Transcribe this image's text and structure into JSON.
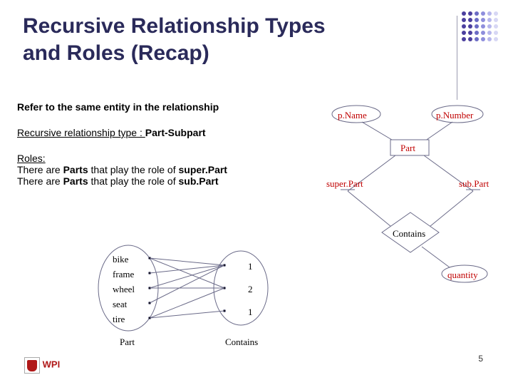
{
  "title_line1": "Recursive Relationship Types",
  "title_line2": "and Roles (Recap)",
  "text1": "Refer to the same entity in the relationship",
  "text2_a": "Recursive relationship type : ",
  "text2_b": "Part-Subpart",
  "roles_head": "Roles:",
  "roles_l1a": "There are ",
  "roles_l1b": "Parts",
  "roles_l1c": " that play the role of ",
  "roles_l1d": "super.Part",
  "roles_l2a": "There are ",
  "roles_l2b": "Parts",
  "roles_l2c": " that play the role of ",
  "roles_l2d": "sub.Part",
  "logo_text": "WPI",
  "page_number": "5",
  "dots": {
    "rows": 5,
    "cols": 6,
    "colors": [
      "#4b3f9e",
      "#4b3f9e",
      "#6b6bc4",
      "#8e8edc",
      "#b6b6ec",
      "#d7d7f4"
    ]
  },
  "er": {
    "pName": "p.Name",
    "pNumber": "p.Number",
    "Part": "Part",
    "superPart": "super.Part",
    "subPart": "sub.Part",
    "Contains": "Contains",
    "quantity": "quantity",
    "colors": {
      "line": "#6a6a88",
      "label": "#c00000",
      "box": "#ffffff"
    }
  },
  "sets": {
    "leftLabel": "Part",
    "rightLabel": "Contains",
    "leftItems": [
      "bike",
      "frame",
      "wheel",
      "seat",
      "tire"
    ],
    "rightItems": [
      "1",
      "2",
      "1"
    ],
    "colors": {
      "line": "#6a6a88"
    }
  }
}
